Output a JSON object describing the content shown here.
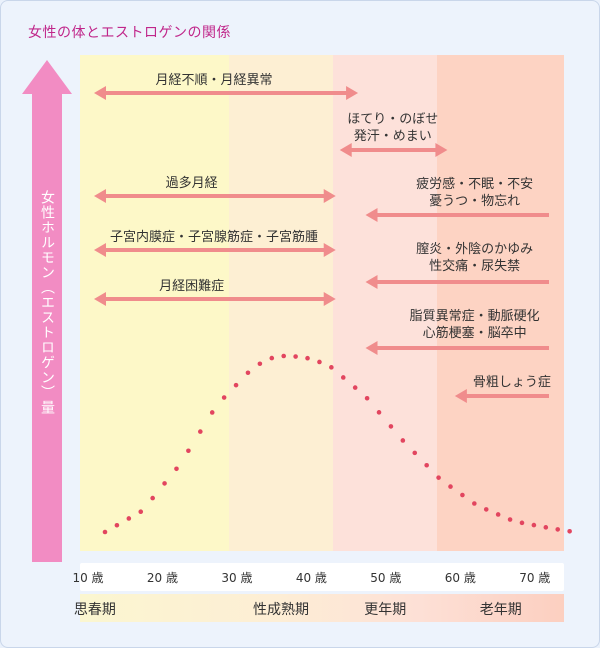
{
  "title": "女性の体とエストロゲンの関係",
  "colors": {
    "arrow": "#f08c8c",
    "axis": "#f28cc3",
    "title": "#c0268a",
    "curve_dots": "#e2455f",
    "band_puberty": "#fdf8c8",
    "band_maturity": "#fdefd3",
    "band_menopause": "#fde1da",
    "band_senescence": "#fdd3c3"
  },
  "chart_data": {
    "type": "line",
    "ylabel": "女性ホルモン（エストロゲン）量",
    "x_ticks": [
      "10 歳",
      "20 歳",
      "30 歳",
      "40 歳",
      "50 歳",
      "60 歳",
      "70 歳"
    ],
    "xlim": [
      10,
      75
    ],
    "series": [
      {
        "x": [
          10,
          15,
          20,
          25,
          30,
          33,
          35,
          37,
          40,
          45,
          50,
          55,
          60,
          65,
          70,
          73
        ],
        "y": [
          0.0,
          0.12,
          0.38,
          0.72,
          0.94,
          1.0,
          1.0,
          0.99,
          0.95,
          0.77,
          0.52,
          0.3,
          0.15,
          0.06,
          0.02,
          0.0
        ]
      }
    ],
    "stages": [
      {
        "label": "思春期",
        "from": 10,
        "to": 30
      },
      {
        "label": "性成熟期",
        "from": 30,
        "to": 44
      },
      {
        "label": "更年期",
        "from": 44,
        "to": 58
      },
      {
        "label": "老年期",
        "from": 58,
        "to": 75
      }
    ],
    "annotations": [
      {
        "lines": [
          "月経不順・月経異常"
        ],
        "from": 10,
        "to": 46,
        "arrow": "both",
        "label_x": 28
      },
      {
        "lines": [
          "ほてり・のぼせ",
          "発汗・めまい"
        ],
        "from": 43,
        "to": 58,
        "arrow": "both",
        "label_x": 52
      },
      {
        "lines": [
          "過多月経"
        ],
        "from": 10,
        "to": 43,
        "arrow": "both",
        "label_x": 25
      },
      {
        "lines": [
          "疲労感・不眠・不安",
          "憂うつ・物忘れ"
        ],
        "from": 47,
        "to": 75,
        "arrow": "left",
        "label_x": 63
      },
      {
        "lines": [
          "子宮内膜症・子宮腺筋症・子宮筋腫"
        ],
        "from": 10,
        "to": 43,
        "arrow": "both",
        "label_x": 28
      },
      {
        "lines": [
          "膣炎・外陰のかゆみ",
          "性交痛・尿失禁"
        ],
        "from": 47,
        "to": 75,
        "arrow": "left",
        "label_x": 63
      },
      {
        "lines": [
          "月経困難症"
        ],
        "from": 10,
        "to": 43,
        "arrow": "both",
        "label_x": 25
      },
      {
        "lines": [
          "脂質異常症・動脈硬化",
          "心筋梗塞・脳卒中"
        ],
        "from": 47,
        "to": 75,
        "arrow": "left",
        "label_x": 63
      },
      {
        "lines": [
          "骨粗しょう症"
        ],
        "from": 59,
        "to": 75,
        "arrow": "left",
        "label_x": 68
      }
    ]
  }
}
